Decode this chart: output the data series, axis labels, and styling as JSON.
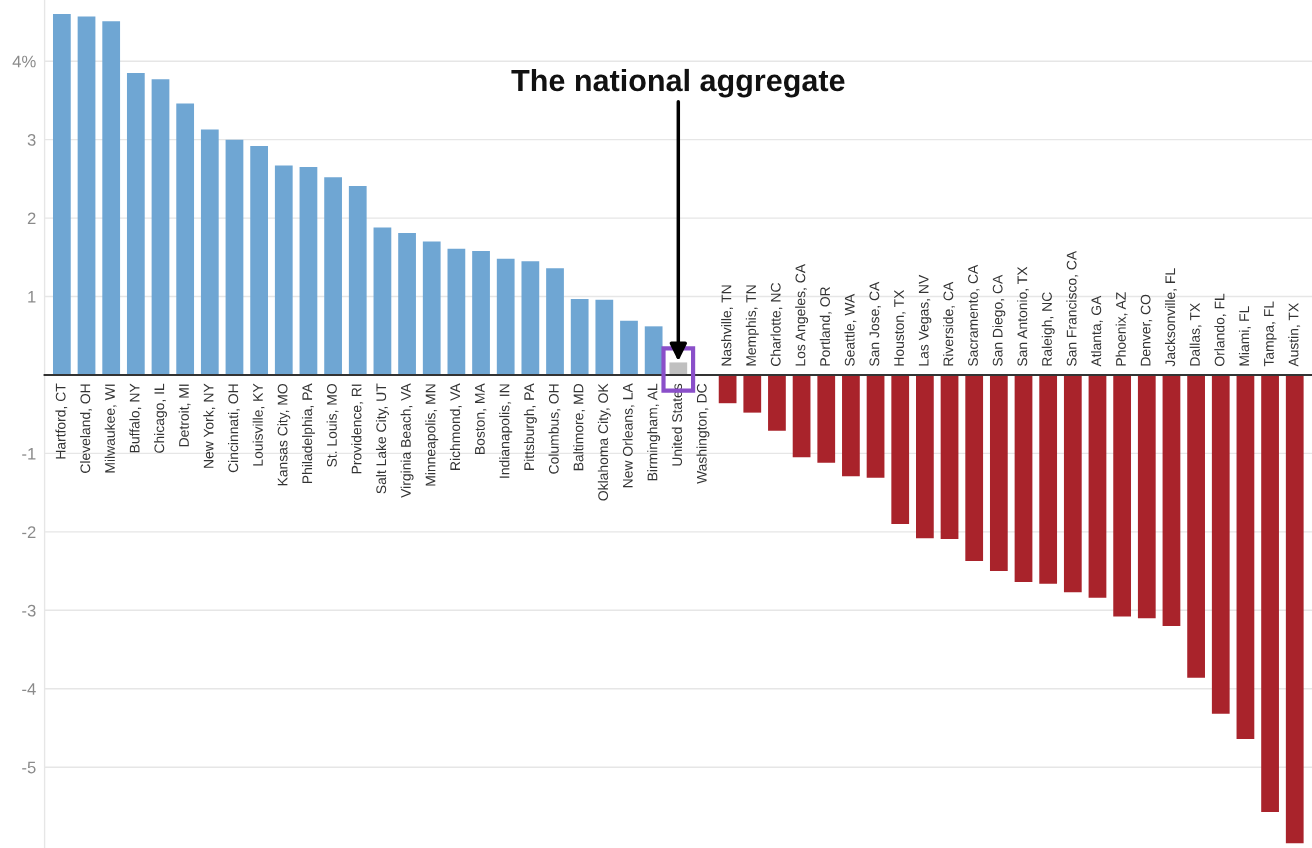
{
  "chart_data": {
    "type": "bar",
    "categories": [
      "Hartford, CT",
      "Cleveland, OH",
      "Milwaukee, WI",
      "Buffalo, NY",
      "Chicago, IL",
      "Detroit, MI",
      "New York, NY",
      "Cincinnati, OH",
      "Louisville, KY",
      "Kansas City, MO",
      "Philadelphia, PA",
      "St. Louis, MO",
      "Providence, RI",
      "Salt Lake City, UT",
      "Virginia Beach, VA",
      "Minneapolis, MN",
      "Richmond, VA",
      "Boston, MA",
      "Indianapolis, IN",
      "Pittsburgh, PA",
      "Columbus, OH",
      "Baltimore, MD",
      "Oklahoma City, OK",
      "New Orleans, LA",
      "Birmingham, AL",
      "United States",
      "Washington, DC",
      "Nashville, TN",
      "Memphis, TN",
      "Charlotte, NC",
      "Los Angeles, CA",
      "Portland, OR",
      "Seattle, WA",
      "San Jose, CA",
      "Houston, TX",
      "Las Vegas, NV",
      "Riverside, CA",
      "Sacramento, CA",
      "San Diego, CA",
      "San Antonio, TX",
      "Raleigh, NC",
      "San Francisco, CA",
      "Atlanta, GA",
      "Phoenix, AZ",
      "Denver, CO",
      "Jacksonville, FL",
      "Dallas, TX",
      "Orlando, FL",
      "Miami, FL",
      "Tampa, FL",
      "Austin, TX"
    ],
    "values": [
      4.6,
      4.57,
      4.51,
      3.85,
      3.77,
      3.46,
      3.13,
      3.0,
      2.92,
      2.67,
      2.65,
      2.52,
      2.41,
      1.88,
      1.81,
      1.7,
      1.61,
      1.58,
      1.48,
      1.45,
      1.36,
      0.97,
      0.96,
      0.69,
      0.62,
      0.16,
      0,
      -0.36,
      -0.48,
      -0.71,
      -1.05,
      -1.12,
      -1.29,
      -1.31,
      -1.9,
      -2.08,
      -2.09,
      -2.37,
      -2.5,
      -2.64,
      -2.66,
      -2.77,
      -2.84,
      -3.08,
      -3.1,
      -3.2,
      -3.86,
      -4.32,
      -4.64,
      -5.57,
      -5.97
    ],
    "colors": [
      "#6fa6d3",
      "#6fa6d3",
      "#6fa6d3",
      "#6fa6d3",
      "#6fa6d3",
      "#6fa6d3",
      "#6fa6d3",
      "#6fa6d3",
      "#6fa6d3",
      "#6fa6d3",
      "#6fa6d3",
      "#6fa6d3",
      "#6fa6d3",
      "#6fa6d3",
      "#6fa6d3",
      "#6fa6d3",
      "#6fa6d3",
      "#6fa6d3",
      "#6fa6d3",
      "#6fa6d3",
      "#6fa6d3",
      "#6fa6d3",
      "#6fa6d3",
      "#6fa6d3",
      "#6fa6d3",
      "#c0c0c0",
      "#6fa6d3",
      "#a9232b",
      "#a9232b",
      "#a9232b",
      "#a9232b",
      "#a9232b",
      "#a9232b",
      "#a9232b",
      "#a9232b",
      "#a9232b",
      "#a9232b",
      "#a9232b",
      "#a9232b",
      "#a9232b",
      "#a9232b",
      "#a9232b",
      "#a9232b",
      "#a9232b",
      "#a9232b",
      "#a9232b",
      "#a9232b",
      "#a9232b",
      "#a9232b",
      "#a9232b",
      "#a9232b"
    ],
    "ylim": [
      -6.03,
      4.78
    ],
    "yticks": [
      {
        "value": 4,
        "label": "4%"
      },
      3,
      2,
      1,
      -1,
      -2,
      -3,
      -4,
      -5
    ],
    "grid": "y",
    "annotations": [
      {
        "text": "The national aggregate",
        "x": "United States",
        "y": 0.16
      }
    ]
  }
}
